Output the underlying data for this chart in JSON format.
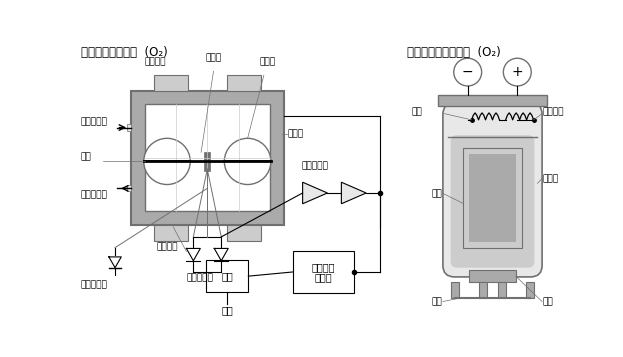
{
  "title_left": "磁力式测量原理图  (O₂)",
  "title_right": "电化学式测量原理图  (O₂)",
  "bg_color": "#ffffff",
  "gray_dark": "#707070",
  "gray_med": "#aaaaaa",
  "gray_light": "#cccccc",
  "gray_lighter": "#e8e8e8",
  "black": "#000000",
  "label_yongjiucitie_top": "永久磁铁",
  "label_fasheying": "反射镜",
  "label_erlianqiu": "二连球",
  "label_qiti_jin": "气体进气口",
  "label_cichang": "磁场",
  "label_qiti_pai": "气体排气口",
  "label_yongjiucitie_bot": "永久磁铁",
  "label_guangdian": "光电二极管",
  "label_faguang": "发光二极管",
  "label_celiangshi": "测量室",
  "label_qianzhi": "前置放大器",
  "label_xianshi": "显示",
  "label_xinhao1": "信号处理",
  "label_xinhao2": "运算器",
  "label_shuchu": "输出",
  "label_diankang": "电阻",
  "label_remin": "热敏电阻",
  "label_fuji": "负极",
  "label_dianjieyie": "电解液",
  "label_zhengji": "正极",
  "label_gemo": "隔膜"
}
